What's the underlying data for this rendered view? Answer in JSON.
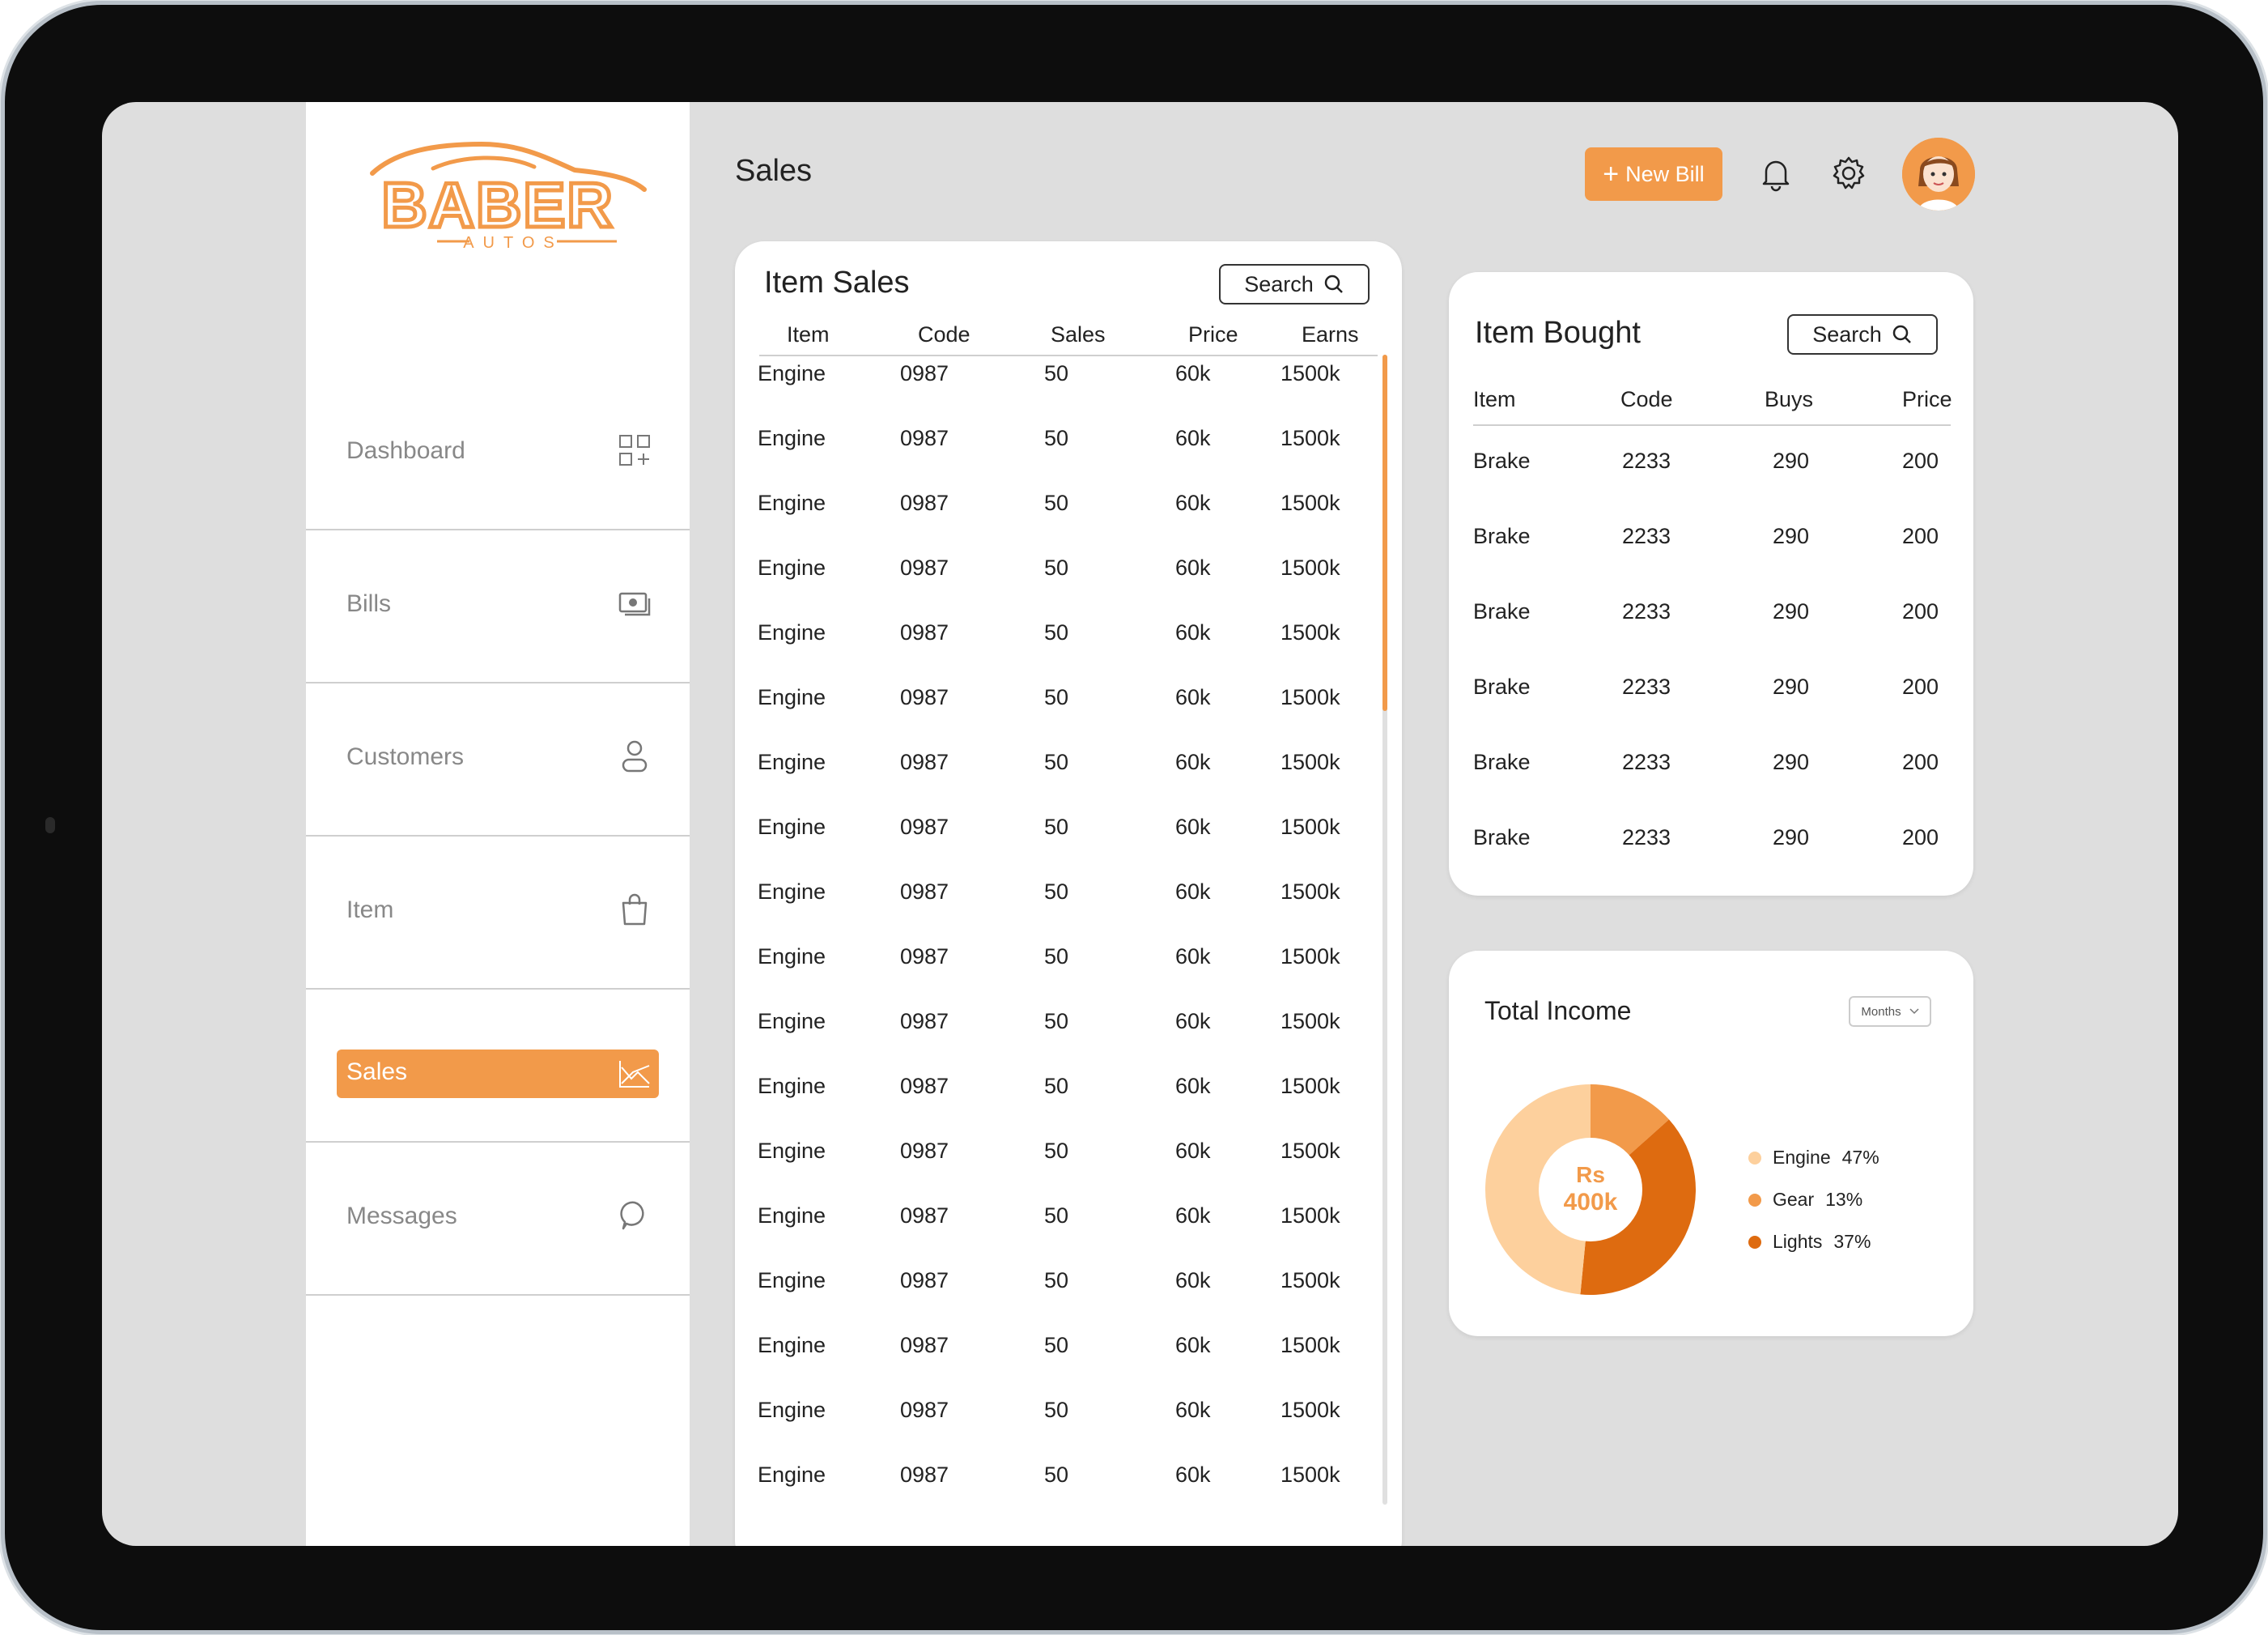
{
  "app": {
    "brand_main": "BABER",
    "brand_sub": "AUTOS",
    "page_title": "Sales"
  },
  "colors": {
    "accent": "#f29a4a",
    "engine": "#fdd09d",
    "gear": "#f29a4a",
    "lights": "#de6b10"
  },
  "sidebar": {
    "items": [
      {
        "label": "Dashboard",
        "icon": "dashboard-grid-icon",
        "active": false
      },
      {
        "label": "Bills",
        "icon": "bill-icon",
        "active": false
      },
      {
        "label": "Customers",
        "icon": "user-icon",
        "active": false
      },
      {
        "label": "Item",
        "icon": "shopping-bag-icon",
        "active": false
      },
      {
        "label": "Sales",
        "icon": "chart-icon",
        "active": true
      },
      {
        "label": "Messages",
        "icon": "chat-icon",
        "active": false
      }
    ]
  },
  "header": {
    "new_bill_label": "New Bill",
    "icons": [
      "bell-icon",
      "gear-icon",
      "avatar"
    ]
  },
  "item_sales": {
    "title": "Item Sales",
    "search_label": "Search",
    "columns": [
      "Item",
      "Code",
      "Sales",
      "Price",
      "Earns"
    ],
    "rows": [
      [
        "Engine",
        "0987",
        "50",
        "60k",
        "1500k"
      ],
      [
        "Engine",
        "0987",
        "50",
        "60k",
        "1500k"
      ],
      [
        "Engine",
        "0987",
        "50",
        "60k",
        "1500k"
      ],
      [
        "Engine",
        "0987",
        "50",
        "60k",
        "1500k"
      ],
      [
        "Engine",
        "0987",
        "50",
        "60k",
        "1500k"
      ],
      [
        "Engine",
        "0987",
        "50",
        "60k",
        "1500k"
      ],
      [
        "Engine",
        "0987",
        "50",
        "60k",
        "1500k"
      ],
      [
        "Engine",
        "0987",
        "50",
        "60k",
        "1500k"
      ],
      [
        "Engine",
        "0987",
        "50",
        "60k",
        "1500k"
      ],
      [
        "Engine",
        "0987",
        "50",
        "60k",
        "1500k"
      ],
      [
        "Engine",
        "0987",
        "50",
        "60k",
        "1500k"
      ],
      [
        "Engine",
        "0987",
        "50",
        "60k",
        "1500k"
      ],
      [
        "Engine",
        "0987",
        "50",
        "60k",
        "1500k"
      ],
      [
        "Engine",
        "0987",
        "50",
        "60k",
        "1500k"
      ],
      [
        "Engine",
        "0987",
        "50",
        "60k",
        "1500k"
      ],
      [
        "Engine",
        "0987",
        "50",
        "60k",
        "1500k"
      ],
      [
        "Engine",
        "0987",
        "50",
        "60k",
        "1500k"
      ],
      [
        "Engine",
        "0987",
        "50",
        "60k",
        "1500k"
      ]
    ]
  },
  "item_bought": {
    "title": "Item Bought",
    "search_label": "Search",
    "columns": [
      "Item",
      "Code",
      "Buys",
      "Price"
    ],
    "rows": [
      [
        "Brake",
        "2233",
        "290",
        "200"
      ],
      [
        "Brake",
        "2233",
        "290",
        "200"
      ],
      [
        "Brake",
        "2233",
        "290",
        "200"
      ],
      [
        "Brake",
        "2233",
        "290",
        "200"
      ],
      [
        "Brake",
        "2233",
        "290",
        "200"
      ],
      [
        "Brake",
        "2233",
        "290",
        "200"
      ]
    ]
  },
  "total_income": {
    "title": "Total Income",
    "period_select": "Months",
    "center_currency": "Rs",
    "center_value": "400k",
    "legend": [
      {
        "name": "Engine",
        "pct_label": "47%",
        "value": 47
      },
      {
        "name": "Gear",
        "pct_label": "13%",
        "value": 13
      },
      {
        "name": "Lights",
        "pct_label": "37%",
        "value": 37
      }
    ]
  }
}
